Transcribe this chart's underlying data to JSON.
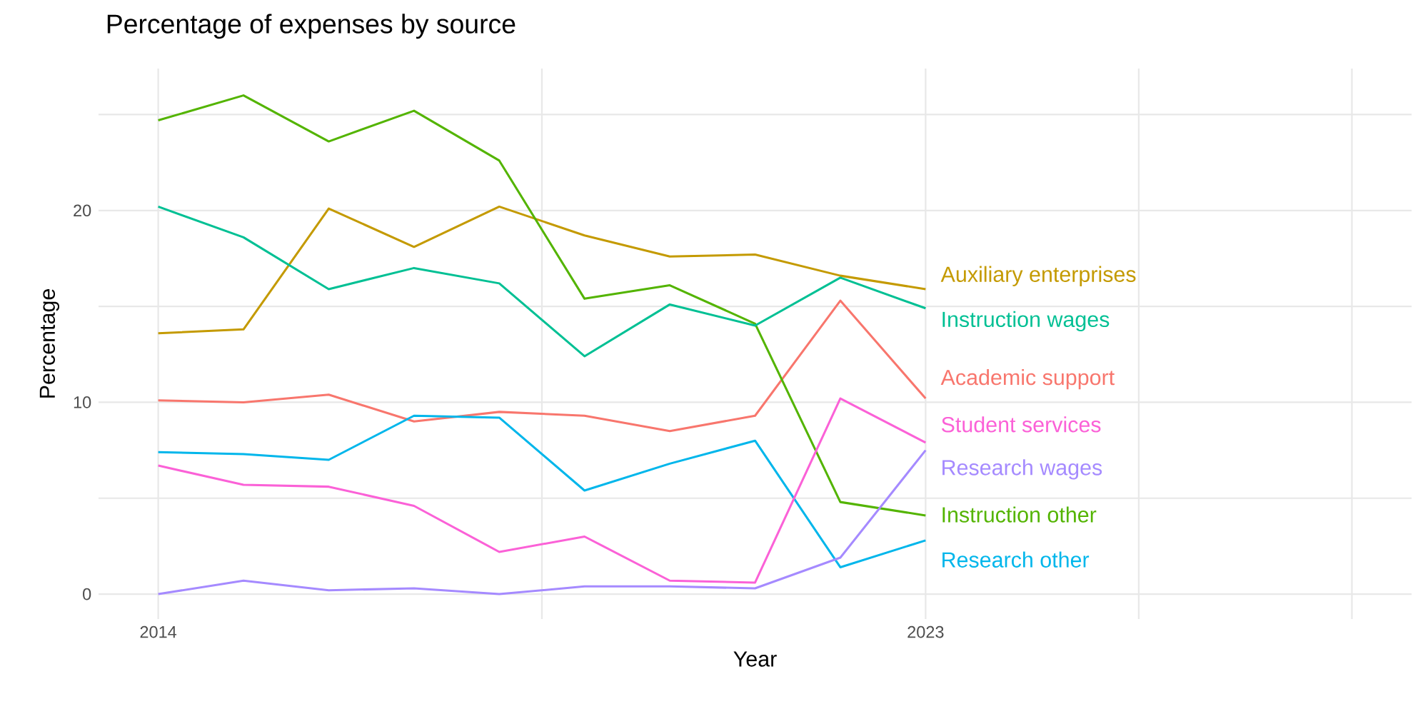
{
  "chart_data": {
    "type": "line",
    "title": "Percentage of expenses by source",
    "xlabel": "Year",
    "ylabel": "Percentage",
    "x": [
      2014,
      2015,
      2016,
      2017,
      2018,
      2019,
      2020,
      2021,
      2022,
      2023
    ],
    "xlim": [
      2013.3,
      2028.7
    ],
    "ylim": [
      -1.3,
      27.4
    ],
    "xticks": [
      2014,
      {
        "value": 2018.5,
        "label": null
      },
      2023,
      {
        "value": 2025.5,
        "label": null
      },
      {
        "value": 2028,
        "label": null
      }
    ],
    "yticks": [
      0,
      {
        "value": 5,
        "label": null
      },
      10,
      {
        "value": 15,
        "label": null
      },
      20,
      {
        "value": 25,
        "label": null
      }
    ],
    "grid": true,
    "legend": false,
    "series": [
      {
        "name": "Academic support",
        "color": "#f8766d",
        "values": [
          10.1,
          10.0,
          10.4,
          9.0,
          9.5,
          9.3,
          8.5,
          9.3,
          15.3,
          10.2
        ]
      },
      {
        "name": "Auxiliary enterprises",
        "color": "#c49a00",
        "values": [
          13.6,
          13.8,
          20.1,
          18.1,
          20.2,
          18.7,
          17.6,
          17.7,
          16.6,
          15.9
        ]
      },
      {
        "name": "Instruction other",
        "color": "#53b400",
        "values": [
          24.7,
          26.0,
          23.6,
          25.2,
          22.6,
          15.4,
          16.1,
          14.1,
          4.8,
          4.1
        ]
      },
      {
        "name": "Instruction wages",
        "color": "#00c094",
        "values": [
          20.2,
          18.6,
          15.9,
          17.0,
          16.2,
          12.4,
          15.1,
          14.0,
          16.5,
          14.9
        ]
      },
      {
        "name": "Research other",
        "color": "#00b6eb",
        "values": [
          7.4,
          7.3,
          7.0,
          9.3,
          9.2,
          5.4,
          6.8,
          8.0,
          1.4,
          2.8
        ]
      },
      {
        "name": "Research wages",
        "color": "#a58aff",
        "values": [
          0,
          0.7,
          0.2,
          0.3,
          0,
          0.4,
          0.4,
          0.3,
          1.9,
          7.5
        ]
      },
      {
        "name": "Student services",
        "color": "#fb61d7",
        "values": [
          6.7,
          5.7,
          5.6,
          4.6,
          2.2,
          3.0,
          0.7,
          0.6,
          10.2,
          7.9
        ]
      }
    ]
  }
}
